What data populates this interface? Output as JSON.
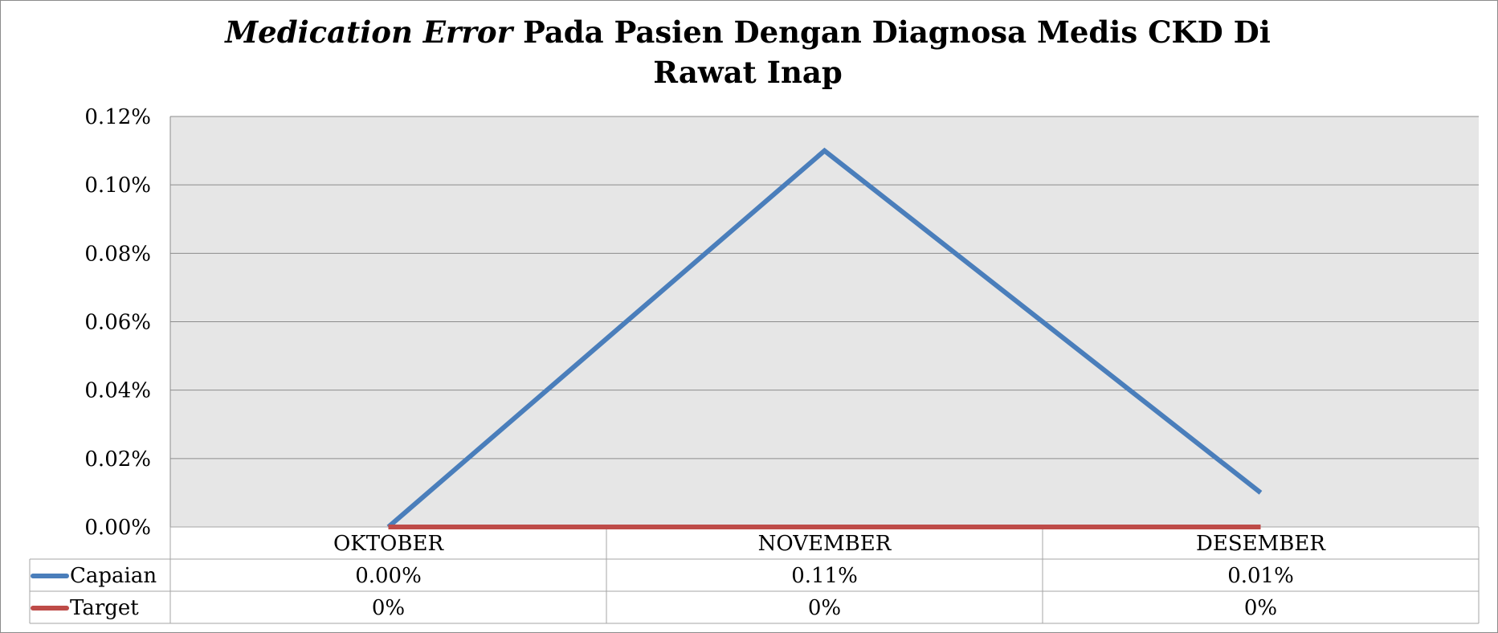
{
  "chart_data": {
    "type": "line",
    "title": {
      "italic_part": "Medication Error",
      "rest_line1": " Pada Pasien Dengan Diagnosa Medis CKD Di",
      "line2": "Rawat Inap"
    },
    "categories": [
      "OKTOBER",
      "NOVEMBER",
      "DESEMBER"
    ],
    "series": [
      {
        "name": "Capaian",
        "color": "#4a7ebb",
        "values": [
          0.0,
          0.11,
          0.01
        ],
        "labels": [
          "0.00%",
          "0.11%",
          "0.01%"
        ]
      },
      {
        "name": "Target",
        "color": "#be4b48",
        "values": [
          0,
          0,
          0
        ],
        "labels": [
          "0%",
          "0%",
          "0%"
        ]
      }
    ],
    "y_ticks": [
      "0.00%",
      "0.02%",
      "0.04%",
      "0.06%",
      "0.08%",
      "0.10%",
      "0.12%"
    ],
    "ylim": [
      0,
      0.12
    ],
    "y_unit": "%",
    "grid": true,
    "legend": "data-table-left",
    "plot_background": "#e6e6e6",
    "gridline_color": "#8c8c8c"
  }
}
